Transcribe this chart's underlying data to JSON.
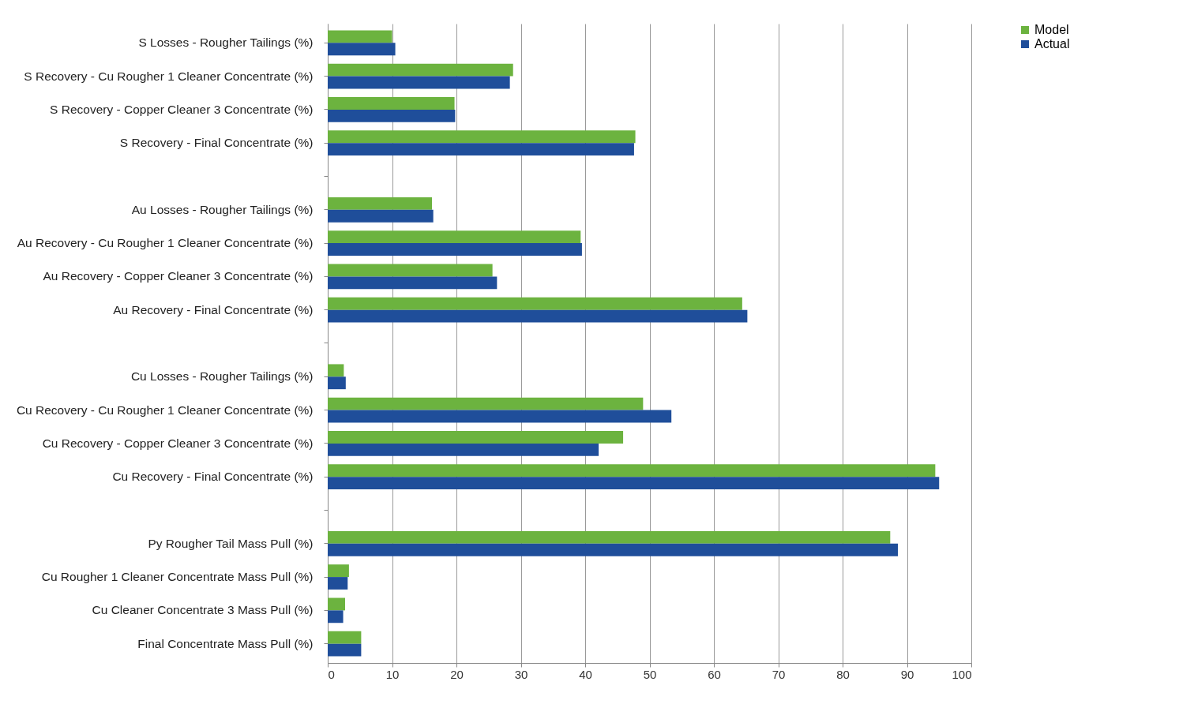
{
  "chart_data": {
    "type": "bar",
    "orientation": "horizontal",
    "categories": [
      "S Losses -  Rougher Tailings (%)",
      "S Recovery - Cu Rougher 1 Cleaner Concentrate (%)",
      "S Recovery - Copper Cleaner 3 Concentrate (%)",
      "S Recovery - Final Concentrate (%)",
      null,
      "Au Losses -  Rougher Tailings (%)",
      "Au Recovery - Cu Rougher 1 Cleaner Concentrate (%)",
      "Au Recovery - Copper Cleaner 3 Concentrate (%)",
      "Au Recovery - Final Concentrate (%)",
      null,
      "Cu Losses -  Rougher Tailings (%)",
      "Cu Recovery - Cu Rougher 1 Cleaner Concentrate (%)",
      "Cu Recovery - Copper Cleaner 3 Concentrate (%)",
      "Cu Recovery - Final Concentrate (%)",
      null,
      "Py Rougher Tail  Mass Pull (%)",
      "Cu Rougher 1 Cleaner  Concentrate  Mass Pull (%)",
      "Cu Cleaner Concentrate 3 Mass Pull (%)",
      "Final Concentrate Mass Pull (%)"
    ],
    "series": [
      {
        "name": "Model",
        "color": "#6cb33f",
        "values": [
          10,
          28.8,
          19.7,
          47.8,
          null,
          16.2,
          39.3,
          25.6,
          64.4,
          null,
          2.5,
          49,
          45.9,
          94.4,
          null,
          87.4,
          3.3,
          2.7,
          5.2
        ]
      },
      {
        "name": "Actual",
        "color": "#1f4e9a",
        "values": [
          10.5,
          28.3,
          19.8,
          47.6,
          null,
          16.4,
          39.5,
          26.3,
          65.2,
          null,
          2.8,
          53.4,
          42.1,
          95,
          null,
          88.6,
          3.1,
          2.4,
          5.2
        ]
      }
    ],
    "xlim": [
      0,
      100
    ],
    "xticks": [
      0,
      10,
      20,
      30,
      40,
      50,
      60,
      70,
      80,
      90,
      100
    ],
    "grid": "x",
    "legend": "right"
  }
}
